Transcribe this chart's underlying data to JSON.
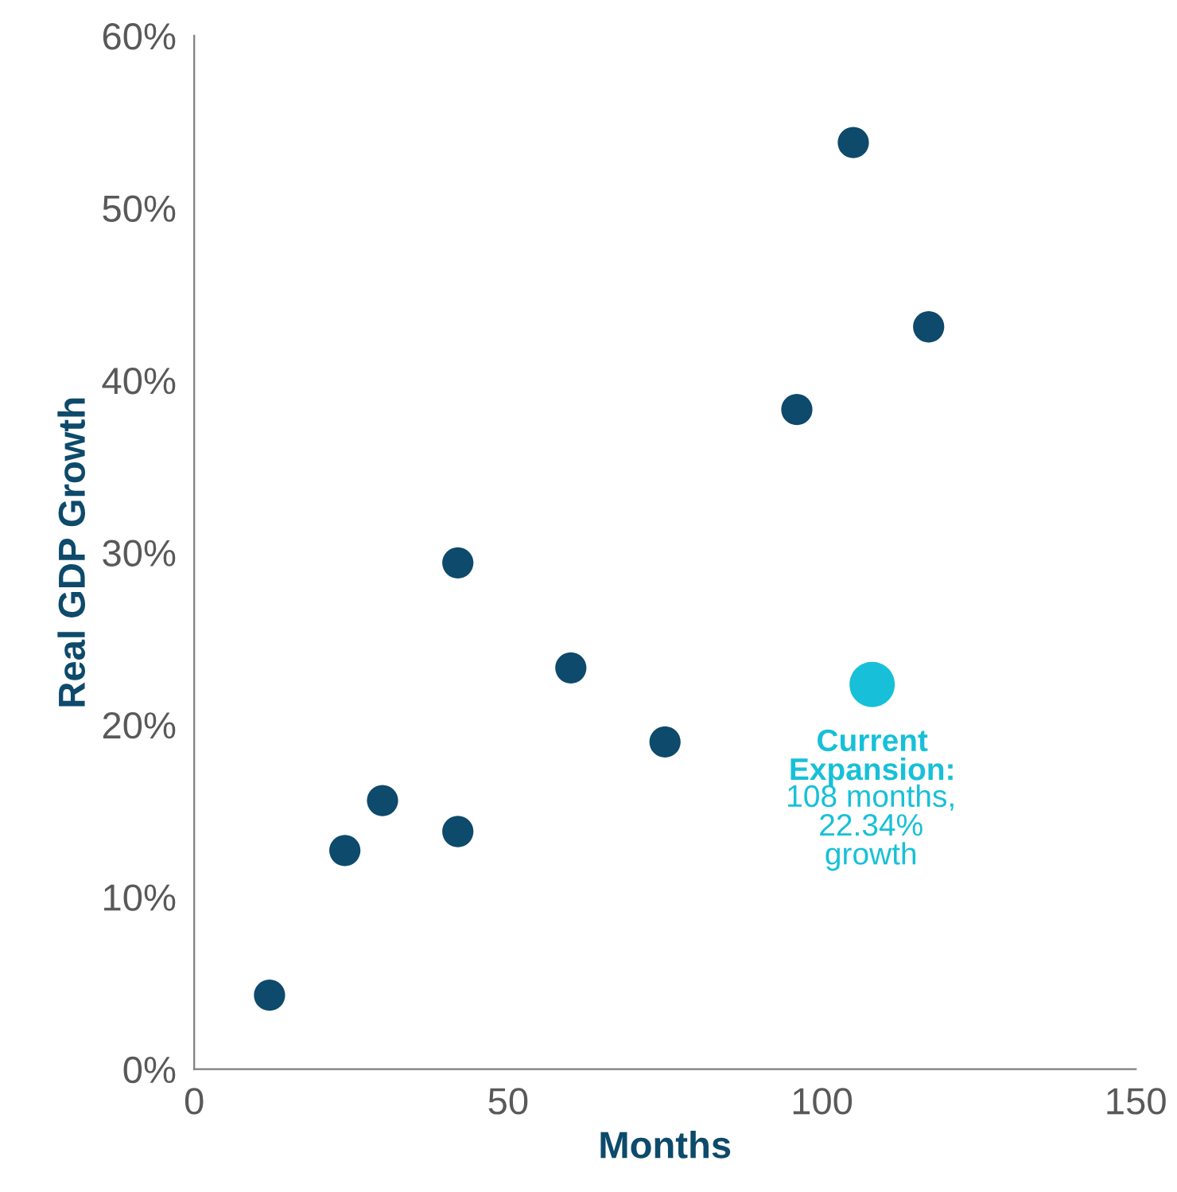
{
  "chart_data": {
    "type": "scatter",
    "xlabel": "Months",
    "ylabel": "Real GDP Growth",
    "xlim": [
      0,
      150
    ],
    "xticks": [
      0,
      50,
      100,
      150
    ],
    "ylim": [
      0,
      60
    ],
    "yticks": [
      {
        "value": 0,
        "label": "0%"
      },
      {
        "value": 10,
        "label": "10%"
      },
      {
        "value": 20,
        "label": "20%"
      },
      {
        "value": 30,
        "label": "30%"
      },
      {
        "value": 40,
        "label": "40%"
      },
      {
        "value": 50,
        "label": "50%"
      },
      {
        "value": 60,
        "label": "60%"
      }
    ],
    "grid": false,
    "legend": false,
    "marker": "circle",
    "series": [
      {
        "color": "#0d4a6b",
        "x": [
          12,
          24,
          30,
          42,
          42,
          60,
          75,
          96,
          105,
          117
        ],
        "values": [
          4.3,
          12.7,
          15.6,
          13.8,
          29.4,
          23.3,
          19.0,
          38.3,
          53.8,
          43.1
        ]
      },
      {
        "color": "#17c0d8",
        "x": [
          108
        ],
        "values": [
          22.34
        ]
      }
    ],
    "annotations": [
      {
        "text": "Current\nExpansion:",
        "x": 108,
        "y": 22.34
      },
      "108 months,\n22.34%\ngrowth"
    ]
  }
}
